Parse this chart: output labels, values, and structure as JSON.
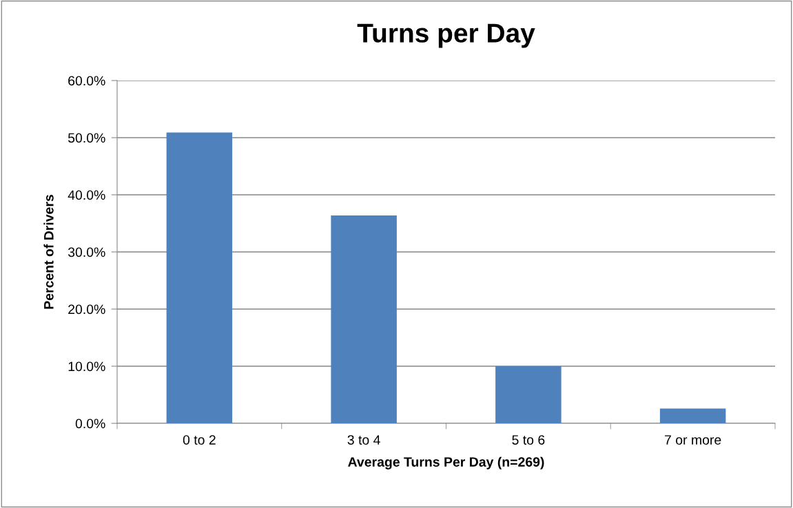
{
  "chart_data": {
    "type": "bar",
    "title": "Turns per Day",
    "xlabel": "Average Turns Per Day (n=269)",
    "ylabel": "Percent of Drivers",
    "categories": [
      "0 to 2",
      "3 to 4",
      "5 to 6",
      "7 or more"
    ],
    "values": [
      50.9,
      36.4,
      10.0,
      2.6
    ],
    "color": "#4f81bd",
    "ylim": [
      0,
      60
    ],
    "yticks": [
      {
        "value": 0,
        "label": "0.0%"
      },
      {
        "value": 10,
        "label": "10.0%"
      },
      {
        "value": 20,
        "label": "20.0%"
      },
      {
        "value": 30,
        "label": "30.0%"
      },
      {
        "value": 40,
        "label": "40.0%"
      },
      {
        "value": 50,
        "label": "50.0%"
      },
      {
        "value": 60,
        "label": "60.0%"
      }
    ],
    "grid": "y",
    "legend": false
  }
}
